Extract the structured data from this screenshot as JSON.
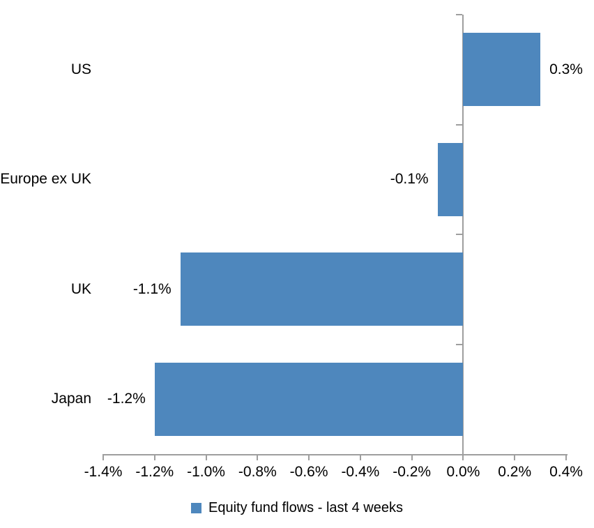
{
  "chart_data": {
    "type": "bar",
    "orientation": "horizontal",
    "title": "",
    "xlabel": "",
    "ylabel": "",
    "categories": [
      "US",
      "Europe ex UK",
      "UK",
      "Japan"
    ],
    "values": [
      0.3,
      -0.1,
      -1.1,
      -1.2
    ],
    "value_labels": [
      "0.3%",
      "-0.1%",
      "-1.1%",
      "-1.2%"
    ],
    "series_name": "Equity fund flows - last 4 weeks",
    "xlim": [
      -1.4,
      0.4
    ],
    "x_ticks": [
      -1.4,
      -1.2,
      -1.0,
      -0.8,
      -0.6,
      -0.4,
      -0.2,
      0.0,
      0.2,
      0.4
    ],
    "x_tick_labels": [
      "-1.4%",
      "-1.2%",
      "-1.0%",
      "-0.8%",
      "-0.6%",
      "-0.4%",
      "-0.2%",
      "0.0%",
      "0.2%",
      "0.4%"
    ],
    "grid": false,
    "legend_position": "bottom",
    "bar_color": "#4E87BD",
    "axis_color": "#9E9E9E",
    "text_color": "#000000"
  }
}
